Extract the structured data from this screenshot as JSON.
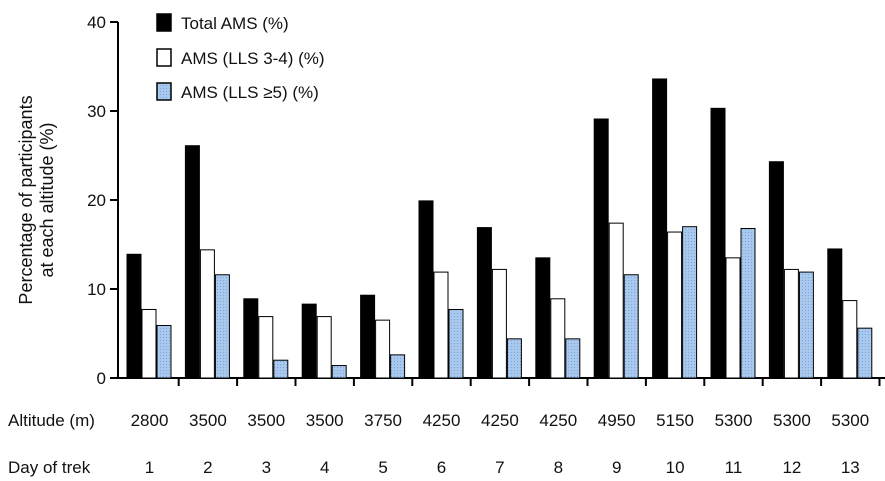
{
  "chart_data": {
    "type": "bar",
    "ylabel_line1": "Percentage of participants",
    "ylabel_line2": "at each altitude (%)",
    "ylim": [
      0,
      40
    ],
    "yticks": [
      0,
      10,
      20,
      30,
      40
    ],
    "legend_position": "top-left",
    "grid": false,
    "altitude_row_label": "Altitude (m)",
    "day_row_label": "Day of trek",
    "altitudes": [
      "2800",
      "3500",
      "3500",
      "3500",
      "3750",
      "4250",
      "4250",
      "4250",
      "4950",
      "5150",
      "5300",
      "5300",
      "5300"
    ],
    "days": [
      "1",
      "2",
      "3",
      "4",
      "5",
      "6",
      "7",
      "8",
      "9",
      "10",
      "11",
      "12",
      "13"
    ],
    "series": [
      {
        "name": "Total AMS (%)",
        "color": "#000000",
        "values": [
          13.9,
          26.1,
          8.9,
          8.3,
          9.3,
          19.9,
          16.9,
          13.5,
          29.1,
          33.6,
          30.3,
          24.3,
          14.5
        ]
      },
      {
        "name": "AMS (LLS 3-4) (%)",
        "color": "#ffffff",
        "values": [
          7.7,
          14.4,
          6.9,
          6.9,
          6.5,
          11.9,
          12.2,
          8.9,
          17.4,
          16.4,
          13.5,
          12.2,
          8.7
        ]
      },
      {
        "name": "AMS (LLS ≥5) (%)",
        "color": "#a9c8ee",
        "values": [
          5.9,
          11.6,
          2.0,
          1.4,
          2.6,
          7.7,
          4.4,
          4.4,
          11.6,
          17.0,
          16.8,
          11.9,
          5.6
        ]
      }
    ]
  }
}
